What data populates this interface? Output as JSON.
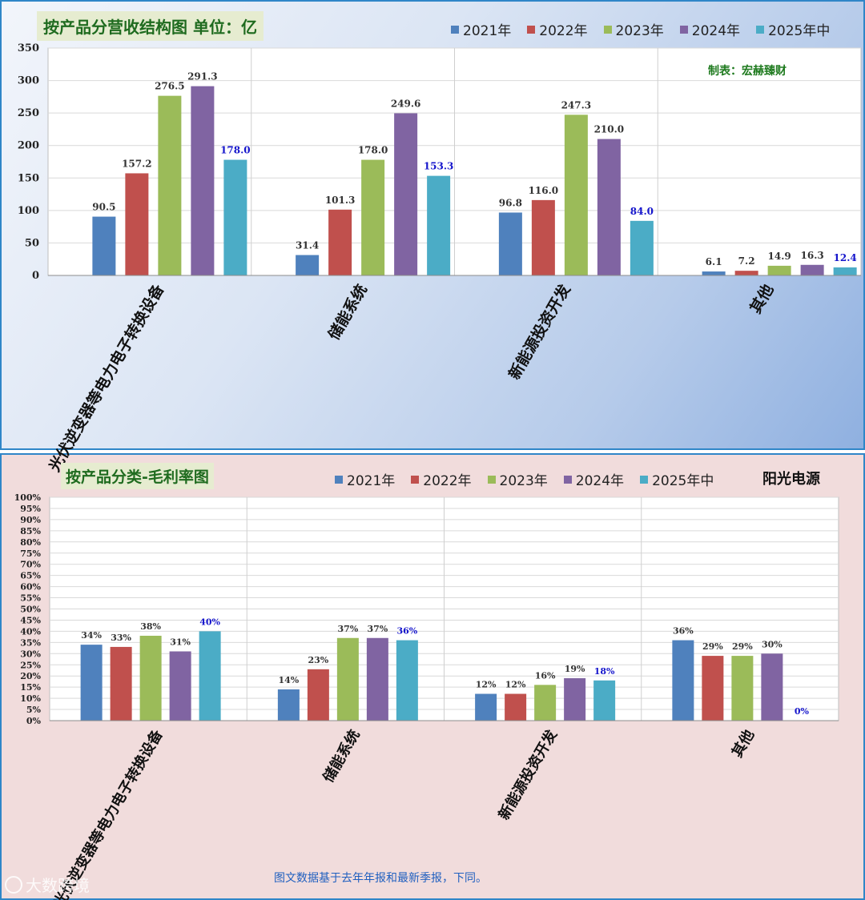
{
  "colors": {
    "2021": "#4f81bd",
    "2022": "#c0504d",
    "2023": "#9bbb59",
    "2024": "#8064a2",
    "2025": "#4bacc6",
    "last_label": "#1515cc"
  },
  "credit": "制表：宏赫臻财",
  "company": "阳光电源",
  "footnote": "图文数据基于去年年报和最新季报，下同。",
  "watermark": "大数跨境",
  "chart_data": [
    {
      "type": "bar",
      "title": "按产品分营收结构图 单位：亿",
      "categories": [
        "光伏逆变器等电力电子转换设备",
        "储能系统",
        "新能源投资开发",
        "其他"
      ],
      "series": [
        {
          "name": "2021年",
          "values": [
            90.5,
            31.4,
            96.8,
            6.1
          ]
        },
        {
          "name": "2022年",
          "values": [
            157.2,
            101.3,
            116.0,
            7.2
          ]
        },
        {
          "name": "2023年",
          "values": [
            276.5,
            178.0,
            247.3,
            14.9
          ]
        },
        {
          "name": "2024年",
          "values": [
            291.3,
            249.6,
            210.0,
            16.3
          ]
        },
        {
          "name": "2025年中",
          "values": [
            178.0,
            153.3,
            84.0,
            12.4
          ]
        }
      ],
      "labels": [
        [
          "90.5",
          "31.4",
          "96.8",
          "6.1"
        ],
        [
          "157.2",
          "101.3",
          "116.0",
          "7.2"
        ],
        [
          "276.5",
          "178.0",
          "247.3",
          "14.9"
        ],
        [
          "291.3",
          "249.6",
          "210.0",
          "16.3"
        ],
        [
          "178.0",
          "153.3",
          "84.0",
          "12.4"
        ]
      ],
      "yticks": [
        "0",
        "50",
        "100",
        "150",
        "200",
        "250",
        "300",
        "350"
      ],
      "ylim": [
        0,
        350
      ],
      "grid": true,
      "legend": "top-right"
    },
    {
      "type": "bar",
      "title": "按产品分类-毛利率图",
      "categories": [
        "光伏逆变器等电力电子转换设备",
        "储能系统",
        "新能源投资开发",
        "其他"
      ],
      "series": [
        {
          "name": "2021年",
          "values": [
            34,
            14,
            12,
            36
          ]
        },
        {
          "name": "2022年",
          "values": [
            33,
            23,
            12,
            29
          ]
        },
        {
          "name": "2023年",
          "values": [
            38,
            37,
            16,
            29
          ]
        },
        {
          "name": "2024年",
          "values": [
            31,
            37,
            19,
            30
          ]
        },
        {
          "name": "2025年中",
          "values": [
            40,
            36,
            18,
            0
          ]
        }
      ],
      "labels": [
        [
          "34%",
          "14%",
          "12%",
          "36%"
        ],
        [
          "33%",
          "23%",
          "12%",
          "29%"
        ],
        [
          "38%",
          "37%",
          "16%",
          "29%"
        ],
        [
          "31%",
          "37%",
          "19%",
          "30%"
        ],
        [
          "40%",
          "36%",
          "18%",
          "0%"
        ]
      ],
      "yticks": [
        "0%",
        "5%",
        "10%",
        "15%",
        "20%",
        "25%",
        "30%",
        "35%",
        "40%",
        "45%",
        "50%",
        "55%",
        "60%",
        "65%",
        "70%",
        "75%",
        "80%",
        "85%",
        "90%",
        "95%",
        "100%"
      ],
      "ylim": [
        0,
        100
      ],
      "grid": true,
      "legend": "top"
    }
  ]
}
